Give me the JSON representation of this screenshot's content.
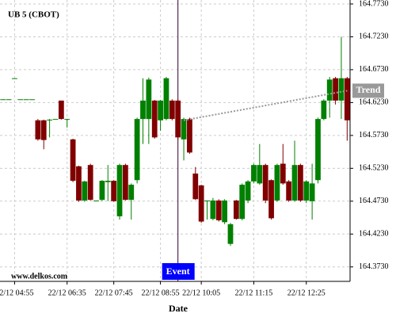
{
  "chart_data": {
    "type": "candlestick",
    "title": "UB 5 (CBOT)",
    "source": "www.delkos.com",
    "x_label": "Date",
    "categories": [
      null,
      null,
      "22/12 04:55",
      null,
      null,
      null,
      null,
      null,
      null,
      null,
      null,
      "22/12 06:35",
      null,
      null,
      null,
      null,
      null,
      null,
      null,
      "22/12 07:45",
      null,
      null,
      null,
      null,
      null,
      null,
      null,
      "22/12 08:55",
      null,
      null,
      null,
      null,
      null,
      null,
      "22/12 10:05",
      null,
      null,
      null,
      null,
      null,
      null,
      null,
      null,
      "22/12 11:15",
      null,
      null,
      null,
      null,
      null,
      null,
      null,
      null,
      "22/12 12:25",
      null,
      null,
      null,
      null,
      null,
      null,
      null
    ],
    "open": [
      164.628,
      164.628,
      164.66,
      164.628,
      164.628,
      164.628,
      164.596,
      164.596,
      164.596,
      164.598,
      164.626,
      164.598,
      164.567,
      164.526,
      164.474,
      164.528,
      164.474,
      164.475,
      164.502,
      164.504,
      164.45,
      164.528,
      164.475,
      164.505,
      164.598,
      164.598,
      164.626,
      164.596,
      164.598,
      164.626,
      164.626,
      164.567,
      164.598,
      164.515,
      164.497,
      164.474,
      164.446,
      164.474,
      164.441,
      164.408,
      164.474,
      164.446,
      164.474,
      164.503,
      164.5,
      164.528,
      164.505,
      164.474,
      164.53,
      164.503,
      164.474,
      164.528,
      164.474,
      164.473,
      164.505,
      164.598,
      164.626,
      164.66,
      164.626,
      164.66
    ],
    "high": [
      164.628,
      164.628,
      164.66,
      164.628,
      164.628,
      164.628,
      164.598,
      164.597,
      164.598,
      164.598,
      164.626,
      164.598,
      164.568,
      164.527,
      164.504,
      164.53,
      164.474,
      164.505,
      164.528,
      164.505,
      164.53,
      164.53,
      164.5,
      164.6,
      164.66,
      164.661,
      164.627,
      164.627,
      164.662,
      164.628,
      164.628,
      164.6,
      164.6,
      164.525,
      164.498,
      164.474,
      164.478,
      164.476,
      164.476,
      164.44,
      164.475,
      164.5,
      164.505,
      164.53,
      164.56,
      164.53,
      164.506,
      164.53,
      164.56,
      164.505,
      164.565,
      164.53,
      164.505,
      164.53,
      164.6,
      164.628,
      164.662,
      164.662,
      164.723,
      164.662
    ],
    "low": [
      164.628,
      164.628,
      164.66,
      164.628,
      164.628,
      164.628,
      164.565,
      164.552,
      164.57,
      164.598,
      164.597,
      164.585,
      164.502,
      164.472,
      164.472,
      164.474,
      164.474,
      164.473,
      164.473,
      164.472,
      164.445,
      164.474,
      164.445,
      164.5,
      164.56,
      164.56,
      164.568,
      164.58,
      164.596,
      164.596,
      164.566,
      164.535,
      164.545,
      164.475,
      164.44,
      164.445,
      164.444,
      164.442,
      164.438,
      164.405,
      164.445,
      164.444,
      164.47,
      164.5,
      164.498,
      164.47,
      164.445,
      164.472,
      164.498,
      164.472,
      164.472,
      164.472,
      164.47,
      164.445,
      164.5,
      164.596,
      164.6,
      164.62,
      164.598,
      164.565
    ],
    "close": [
      164.628,
      164.628,
      164.66,
      164.628,
      164.628,
      164.628,
      164.567,
      164.566,
      164.597,
      164.598,
      164.598,
      164.598,
      164.504,
      164.474,
      164.503,
      164.475,
      164.474,
      164.504,
      164.504,
      164.473,
      164.528,
      164.475,
      164.498,
      164.598,
      164.626,
      164.658,
      164.57,
      164.626,
      164.66,
      164.598,
      164.57,
      164.598,
      164.547,
      164.476,
      164.442,
      164.474,
      164.474,
      164.444,
      164.474,
      164.438,
      164.446,
      164.498,
      164.503,
      164.528,
      164.528,
      164.474,
      164.447,
      164.528,
      164.5,
      164.474,
      164.528,
      164.474,
      164.503,
      164.5,
      164.598,
      164.626,
      164.658,
      164.626,
      164.66,
      164.596
    ],
    "up_color": "#008000",
    "down_color": "#800000",
    "ylim": [
      164.351,
      164.779
    ],
    "yticks": [
      {
        "value": 164.373,
        "label": "164.3730"
      },
      {
        "value": 164.423,
        "label": "164.4230"
      },
      {
        "value": 164.473,
        "label": "164.4730"
      },
      {
        "value": 164.523,
        "label": "164.5230"
      },
      {
        "value": 164.573,
        "label": "164.5730"
      },
      {
        "value": 164.623,
        "label": "164.6230"
      },
      {
        "value": 164.673,
        "label": "164.6730"
      },
      {
        "value": 164.723,
        "label": "164.7230"
      },
      {
        "value": 164.773,
        "label": "164.7730"
      }
    ],
    "grid": true,
    "event": {
      "label": "Event",
      "index": 30,
      "color": "#330033",
      "box_color": "#0000ff"
    },
    "trend": {
      "label": "Trend",
      "start_index": 31,
      "start_value": 164.596,
      "end_index": 59,
      "end_value": 164.641,
      "color": "#999999"
    }
  }
}
